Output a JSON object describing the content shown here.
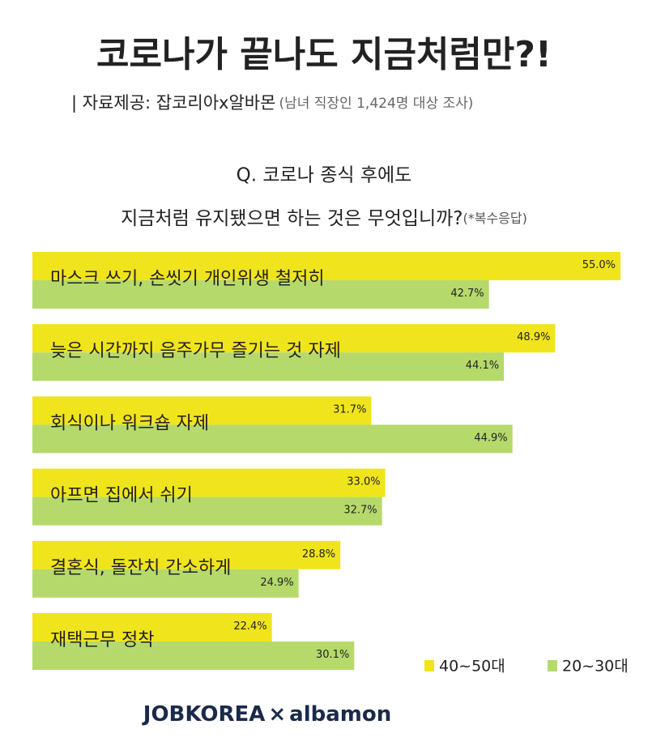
{
  "chart_data": {
    "type": "bar",
    "orientation": "horizontal",
    "title": "코로나가 끝나도 지금처럼만?!",
    "subtitle": "| 자료제공: 잡코리아x알바몬",
    "subtitle_note": "(남녀 직장인 1,424명 대상 조사)",
    "question": [
      "Q. 코로나 종식 후에도",
      "지금처럼 유지됐으면 하는 것은 무엇입니까?"
    ],
    "question_note": "(*복수응답)",
    "categories": [
      "마스크 쓰기, 손씻기 개인위생 철저히",
      "늦은 시간까지 음주가무 즐기는 것 자제",
      "회식이나 워크숍 자제",
      "아프면 집에서 쉬기",
      "결혼식, 돌잔치 간소하게",
      "재택근무 정착"
    ],
    "series": [
      {
        "name": "40~50대",
        "color": "#f0e41c",
        "values": [
          55.0,
          48.9,
          31.7,
          33.0,
          28.8,
          22.4
        ],
        "value_labels": [
          "55.0%",
          "48.9%",
          "31.7%",
          "33.0%",
          "28.8%",
          "22.4%"
        ]
      },
      {
        "name": "20~30대",
        "color": "#b6d96c",
        "values": [
          42.7,
          44.1,
          44.9,
          32.7,
          24.9,
          30.1
        ],
        "value_labels": [
          "42.7%",
          "44.1%",
          "44.9%",
          "32.7%",
          "24.9%",
          "30.1%"
        ]
      }
    ],
    "legend": "bottom-right"
  },
  "footer": {
    "left": "JOBKOREA",
    "separator": "×",
    "right": "albamon"
  }
}
